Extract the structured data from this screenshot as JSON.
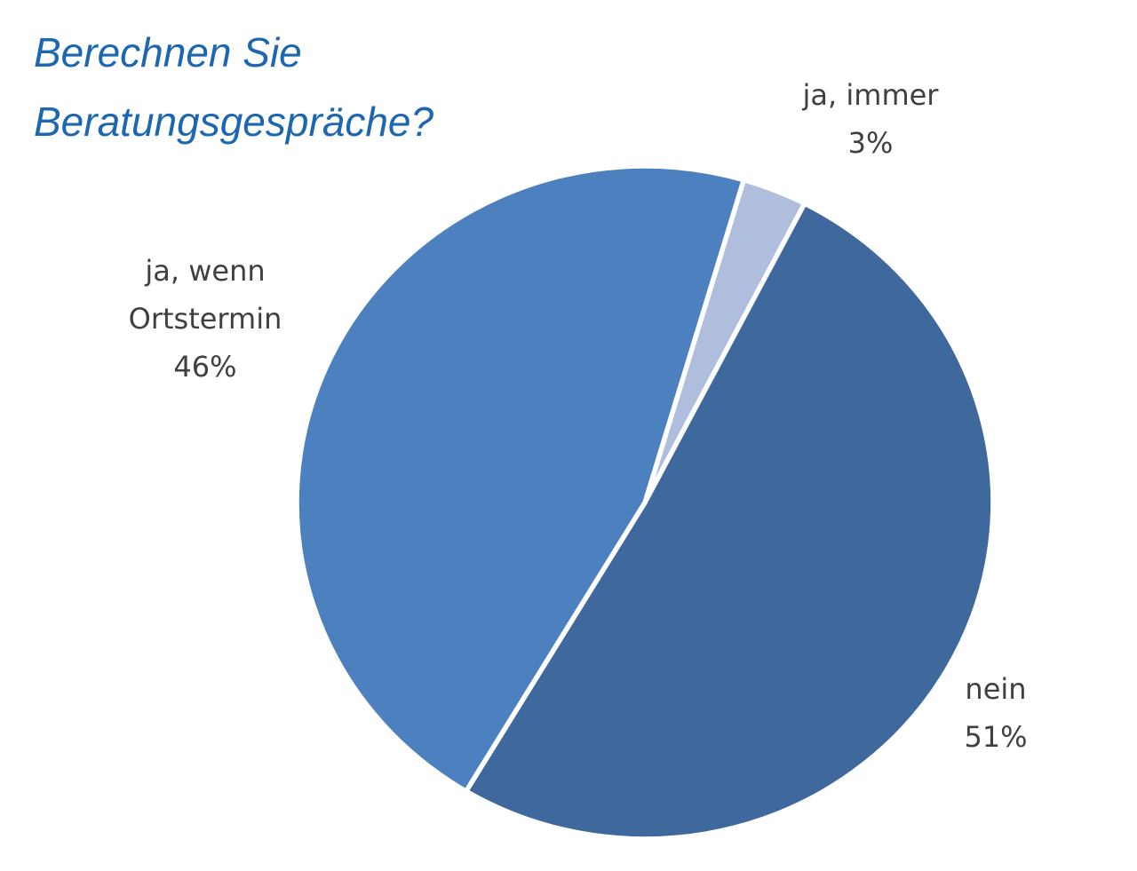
{
  "title": {
    "line1": "Berechnen Sie",
    "line2": "Beratungsgespräche?",
    "color": "#1c67b0"
  },
  "chart_data": {
    "type": "pie",
    "title": "Berechnen Sie Beratungsgespräche?",
    "direction": "clockwise",
    "start_angle_deg": 16.5,
    "separator_color": "#ffffff",
    "label_color": "#404040",
    "legend": "none",
    "slices": [
      {
        "label": "ja, immer",
        "value_pct": 3,
        "color": "#afbedd"
      },
      {
        "label": "nein",
        "value_pct": 51,
        "color": "#3f699c"
      },
      {
        "label": "ja, wenn Ortstermin",
        "value_pct": 46,
        "color": "#4d80bf"
      }
    ],
    "labels": [
      {
        "id": "ja-immer",
        "lines": [
          "ja, immer",
          "3%"
        ]
      },
      {
        "id": "ja-wenn-ortstermin",
        "lines": [
          "ja, wenn",
          "Ortstermin",
          "46%"
        ]
      },
      {
        "id": "nein",
        "lines": [
          "nein",
          "51%"
        ]
      }
    ]
  }
}
